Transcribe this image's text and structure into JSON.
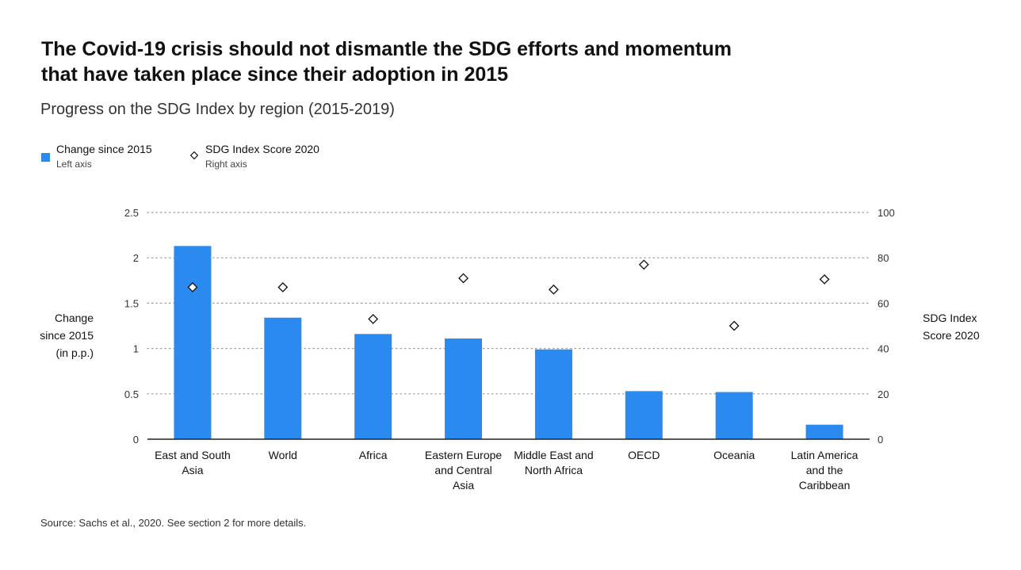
{
  "header": {
    "title_line1": "The Covid-19 crisis should not dismantle the SDG efforts and momentum",
    "title_line2": "that have taken place since their adoption in 2015",
    "subtitle": "Progress on the SDG Index by region (2015-2019)"
  },
  "legend": {
    "bar": {
      "label": "Change since 2015",
      "sub": "Left axis"
    },
    "diamond": {
      "label": "SDG Index Score 2020",
      "sub": "Right axis"
    }
  },
  "axes": {
    "left_title": [
      "Change",
      "since 2015",
      "(in p.p.)"
    ],
    "right_title": [
      "SDG Index",
      "Score 2020"
    ]
  },
  "source": "Source: Sachs et al., 2020. See section 2 for more details.",
  "colors": {
    "bar": "#2b8aef",
    "text": "#111111",
    "grid": "#999999",
    "axis": "#222222"
  },
  "chart_data": {
    "type": "bar",
    "categories": [
      [
        "East and South",
        "Asia"
      ],
      [
        "World"
      ],
      [
        "Africa"
      ],
      [
        "Eastern Europe",
        "and Central",
        "Asia"
      ],
      [
        "Middle East and",
        "North Africa"
      ],
      [
        "OECD"
      ],
      [
        "Oceania"
      ],
      [
        "Latin America",
        "and the",
        "Caribbean"
      ]
    ],
    "series": [
      {
        "name": "Change since 2015",
        "axis": "left",
        "mark": "bar",
        "values": [
          2.13,
          1.34,
          1.16,
          1.11,
          0.99,
          0.53,
          0.52,
          0.16
        ]
      },
      {
        "name": "SDG Index Score 2020",
        "axis": "right",
        "mark": "diamond",
        "values": [
          67,
          67,
          53,
          71,
          66,
          77,
          50,
          70.5
        ]
      }
    ],
    "left_axis": {
      "ylim": [
        0,
        2.5
      ],
      "ticks": [
        "0",
        "0.5",
        "1",
        "1.5",
        "2",
        "2.5"
      ]
    },
    "right_axis": {
      "ylim": [
        0,
        100
      ],
      "ticks": [
        "0",
        "20",
        "40",
        "60",
        "80",
        "100"
      ]
    },
    "grid": "dotted horizontal",
    "legend_position": "top-left"
  }
}
